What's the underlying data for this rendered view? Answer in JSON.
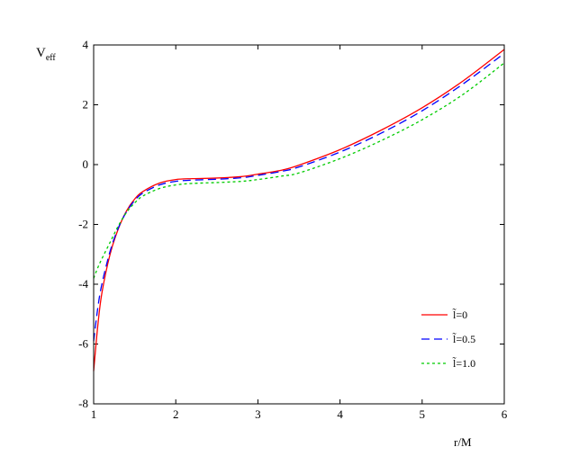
{
  "chart_data": {
    "type": "line",
    "ylabel_main": "V",
    "ylabel_sub": "eff",
    "xlabel": "r/M",
    "xlim": [
      1,
      6
    ],
    "ylim": [
      -8,
      4
    ],
    "x_ticks": [
      1,
      2,
      3,
      4,
      5,
      6
    ],
    "y_ticks": [
      -8,
      -6,
      -4,
      -2,
      0,
      2,
      4
    ],
    "grid": false,
    "legend_position": "bottom-right",
    "series": [
      {
        "name": "l̃=0",
        "color": "#ff0000",
        "dash": "solid",
        "x": [
          1.0,
          1.05,
          1.1,
          1.2,
          1.3,
          1.4,
          1.5,
          1.6,
          1.8,
          2.0,
          2.2,
          2.5,
          2.8,
          3.0,
          3.3,
          3.5,
          4.0,
          4.5,
          5.0,
          5.5,
          6.0
        ],
        "y": [
          -6.9,
          -5.4,
          -4.3,
          -3.0,
          -2.15,
          -1.55,
          -1.15,
          -0.9,
          -0.62,
          -0.5,
          -0.47,
          -0.45,
          -0.4,
          -0.32,
          -0.18,
          -0.02,
          0.5,
          1.15,
          1.9,
          2.8,
          3.85
        ]
      },
      {
        "name": "l̃=0.5",
        "color": "#0000ff",
        "dash": "long-dash",
        "x": [
          1.0,
          1.05,
          1.1,
          1.2,
          1.3,
          1.4,
          1.5,
          1.6,
          1.8,
          2.0,
          2.2,
          2.5,
          2.8,
          3.0,
          3.3,
          3.5,
          4.0,
          4.5,
          5.0,
          5.5,
          6.0
        ],
        "y": [
          -5.9,
          -4.8,
          -4.0,
          -2.9,
          -2.12,
          -1.58,
          -1.2,
          -0.95,
          -0.68,
          -0.56,
          -0.52,
          -0.49,
          -0.44,
          -0.36,
          -0.22,
          -0.08,
          0.42,
          1.05,
          1.8,
          2.7,
          3.72
        ]
      },
      {
        "name": "l̃=1.0",
        "color": "#00cc00",
        "dash": "short-dash",
        "x": [
          1.0,
          1.05,
          1.1,
          1.2,
          1.3,
          1.4,
          1.5,
          1.6,
          1.8,
          2.0,
          2.2,
          2.5,
          2.8,
          3.0,
          3.3,
          3.5,
          4.0,
          4.5,
          5.0,
          5.5,
          6.0
        ],
        "y": [
          -3.8,
          -3.45,
          -3.15,
          -2.6,
          -2.05,
          -1.6,
          -1.28,
          -1.05,
          -0.8,
          -0.68,
          -0.63,
          -0.6,
          -0.56,
          -0.5,
          -0.38,
          -0.28,
          0.2,
          0.8,
          1.5,
          2.35,
          3.4
        ]
      }
    ]
  }
}
